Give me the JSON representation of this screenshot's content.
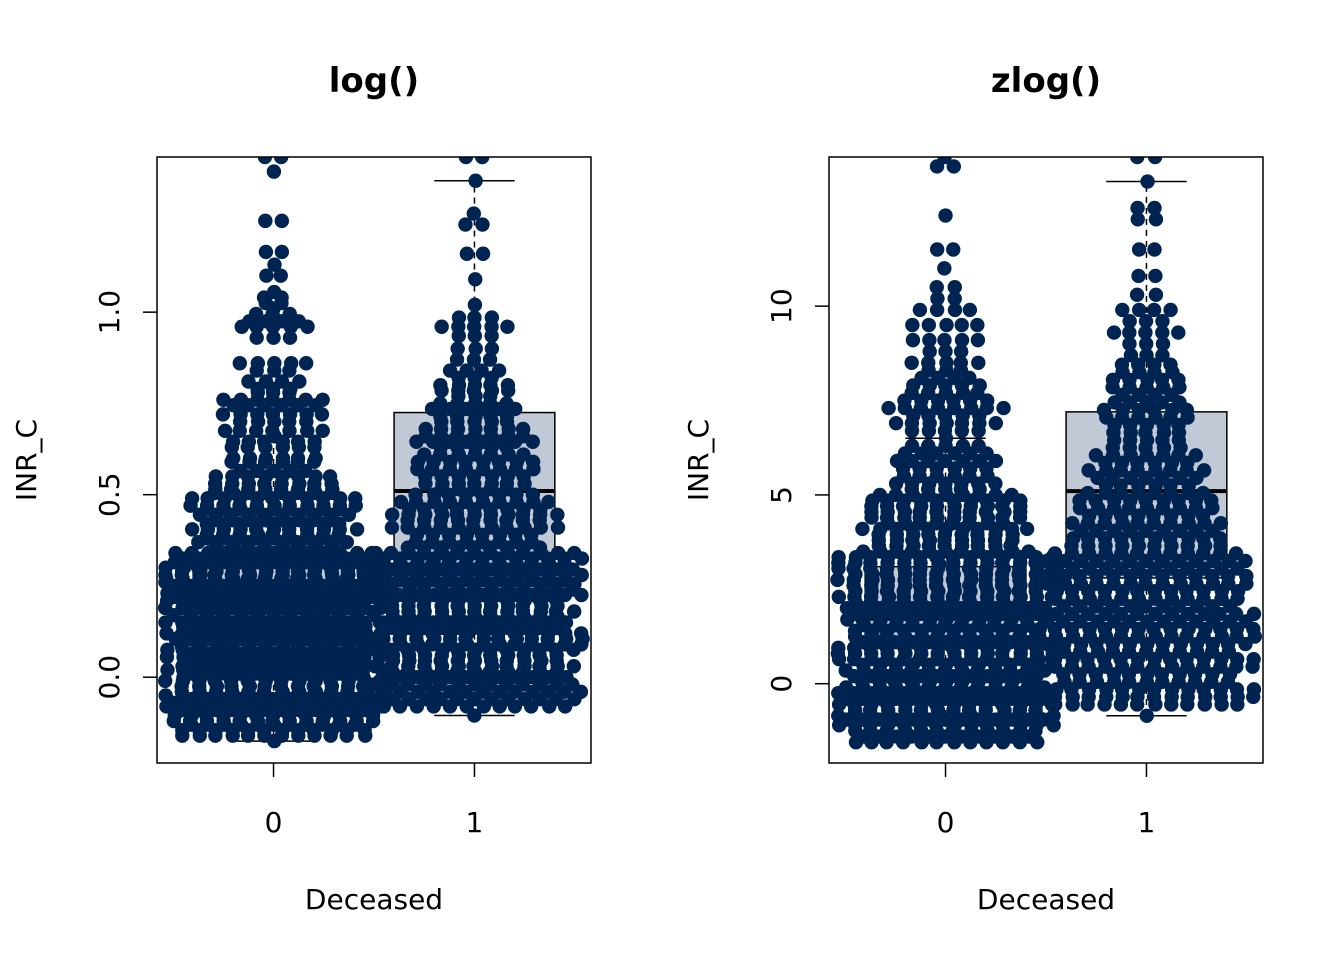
{
  "chart_data": [
    {
      "type": "boxplot-beeswarm",
      "title": "log()",
      "xlabel": "Deceased",
      "ylabel": "INR_C",
      "categories": [
        "0",
        "1"
      ],
      "yticks": [
        "0.0",
        "0.5",
        "1.0"
      ],
      "ytick_values": [
        0,
        0.5,
        1.0
      ],
      "ylim": [
        -0.235,
        1.425
      ],
      "xlim": [
        -0.58,
        1.58
      ],
      "box_fill": "#c1c9d7",
      "point_color": "#002451",
      "boxes": [
        {
          "category": "0",
          "q1": 0.1,
          "median": 0.18,
          "q3": 0.31,
          "whisker_low": -0.175,
          "whisker_high": 0.66
        },
        {
          "category": "1",
          "q1": 0.27,
          "median": 0.51,
          "q3": 0.725,
          "whisker_low": -0.105,
          "whisker_high": 1.36
        }
      ],
      "levels": {
        "0": [
          -0.175,
          -0.16,
          -0.145,
          -0.13,
          -0.12,
          -0.105,
          -0.09,
          -0.08,
          -0.07,
          -0.06,
          -0.05,
          -0.04,
          -0.025,
          -0.01,
          0.0,
          0.01,
          0.02,
          0.03,
          0.045,
          0.055,
          0.065,
          0.075,
          0.085,
          0.095,
          0.105,
          0.12,
          0.13,
          0.14,
          0.15,
          0.16,
          0.17,
          0.18,
          0.19,
          0.2,
          0.21,
          0.22,
          0.23,
          0.24,
          0.25,
          0.26,
          0.27,
          0.28,
          0.29,
          0.3,
          0.315,
          0.325,
          0.34,
          0.355,
          0.37,
          0.38,
          0.39,
          0.405,
          0.42,
          0.43,
          0.445,
          0.46,
          0.47,
          0.49,
          0.505,
          0.515,
          0.53,
          0.55,
          0.565,
          0.59,
          0.6,
          0.63,
          0.645,
          0.66,
          0.675,
          0.7,
          0.72,
          0.745,
          0.76,
          0.78,
          0.79,
          0.81,
          0.84,
          0.86,
          0.93,
          0.96,
          0.975,
          0.995,
          1.01,
          1.025,
          1.04,
          1.055,
          1.1,
          1.13,
          1.165,
          1.25,
          1.385,
          1.425
        ],
        "1": [
          -0.105,
          -0.08,
          -0.06,
          -0.04,
          -0.02,
          0.0,
          0.015,
          0.03,
          0.045,
          0.06,
          0.075,
          0.09,
          0.105,
          0.12,
          0.135,
          0.15,
          0.165,
          0.18,
          0.195,
          0.21,
          0.225,
          0.24,
          0.255,
          0.265,
          0.28,
          0.295,
          0.31,
          0.325,
          0.34,
          0.355,
          0.37,
          0.39,
          0.41,
          0.43,
          0.445,
          0.46,
          0.48,
          0.5,
          0.515,
          0.53,
          0.55,
          0.57,
          0.59,
          0.61,
          0.63,
          0.645,
          0.66,
          0.68,
          0.7,
          0.715,
          0.735,
          0.75,
          0.77,
          0.785,
          0.8,
          0.82,
          0.84,
          0.87,
          0.9,
          0.935,
          0.96,
          0.985,
          1.02,
          1.09,
          1.16,
          1.24,
          1.27,
          1.36,
          1.425
        ]
      }
    },
    {
      "type": "boxplot-beeswarm",
      "title": "zlog()",
      "xlabel": "Deceased",
      "ylabel": "INR_C",
      "categories": [
        "0",
        "1"
      ],
      "yticks": [
        "0",
        "5",
        "10"
      ],
      "ytick_values": [
        0,
        5,
        10
      ],
      "ylim": [
        -2.1,
        13.95
      ],
      "xlim": [
        -0.58,
        1.58
      ],
      "box_fill": "#c1c9d7",
      "point_color": "#002451",
      "boxes": [
        {
          "category": "0",
          "q1": 1.05,
          "median": 1.95,
          "q3": 3.1,
          "whisker_low": -1.5,
          "whisker_high": 6.5
        },
        {
          "category": "1",
          "q1": 2.8,
          "median": 5.1,
          "q3": 7.2,
          "whisker_low": -0.85,
          "whisker_high": 13.3
        }
      ],
      "levels": {
        "0": [
          -1.55,
          -1.4,
          -1.25,
          -1.1,
          -0.95,
          -0.85,
          -0.7,
          -0.55,
          -0.4,
          -0.25,
          -0.1,
          0.05,
          0.2,
          0.35,
          0.5,
          0.65,
          0.8,
          0.95,
          1.1,
          1.25,
          1.4,
          1.55,
          1.7,
          1.85,
          2.0,
          2.15,
          2.3,
          2.45,
          2.6,
          2.75,
          2.9,
          3.05,
          3.2,
          3.35,
          3.5,
          3.65,
          3.8,
          3.95,
          4.1,
          4.25,
          4.4,
          4.55,
          4.7,
          4.85,
          5.0,
          5.15,
          5.3,
          5.5,
          5.7,
          5.9,
          6.1,
          6.3,
          6.5,
          6.7,
          6.9,
          7.1,
          7.3,
          7.5,
          7.7,
          7.9,
          8.1,
          8.3,
          8.5,
          8.8,
          9.1,
          9.5,
          9.9,
          10.2,
          10.5,
          11.0,
          11.5,
          12.4,
          13.7,
          13.95
        ],
        "1": [
          -0.85,
          -0.55,
          -0.35,
          -0.15,
          0.05,
          0.25,
          0.45,
          0.65,
          0.85,
          1.05,
          1.25,
          1.45,
          1.65,
          1.85,
          2.05,
          2.25,
          2.45,
          2.65,
          2.85,
          3.05,
          3.25,
          3.45,
          3.65,
          3.85,
          4.05,
          4.25,
          4.45,
          4.65,
          4.85,
          5.05,
          5.25,
          5.45,
          5.65,
          5.85,
          6.05,
          6.25,
          6.45,
          6.65,
          6.85,
          7.05,
          7.25,
          7.45,
          7.65,
          7.85,
          8.05,
          8.25,
          8.45,
          8.7,
          9.0,
          9.3,
          9.6,
          9.9,
          10.3,
          10.8,
          11.5,
          12.3,
          12.6,
          13.3,
          13.95
        ]
      }
    }
  ]
}
